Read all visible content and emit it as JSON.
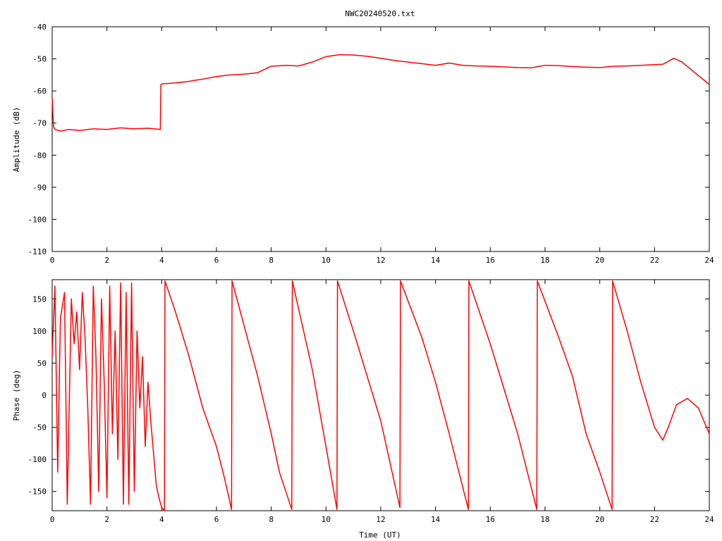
{
  "chart_data": [
    {
      "type": "line",
      "title": "NWC20240520.txt",
      "xlabel": "",
      "ylabel": "Amplitude (dB)",
      "xlim": [
        0,
        24
      ],
      "ylim": [
        -110,
        -40
      ],
      "xticks": [
        "0",
        "2",
        "4",
        "6",
        "8",
        "10",
        "12",
        "14",
        "16",
        "18",
        "20",
        "22",
        "24"
      ],
      "yticks": [
        "-40",
        "-50",
        "-60",
        "-70",
        "-80",
        "-90",
        "-100",
        "-110"
      ],
      "grid": false,
      "color": "#ff0000",
      "series": [
        {
          "x": [
            0.0,
            0.05,
            0.1,
            0.3,
            0.6,
            1.0,
            1.5,
            2.0,
            2.5,
            3.0,
            3.5,
            3.95,
            3.97,
            4.0,
            4.5,
            5.0,
            5.5,
            6.0,
            6.5,
            7.0,
            7.5,
            8.0,
            8.5,
            9.0,
            9.5,
            10.0,
            10.5,
            11.0,
            11.5,
            12.0,
            12.5,
            13.0,
            13.5,
            14.0,
            14.5,
            15.0,
            15.5,
            16.0,
            16.5,
            17.0,
            17.5,
            18.0,
            18.5,
            19.0,
            19.5,
            20.0,
            20.5,
            21.0,
            21.5,
            22.0,
            22.3,
            22.5,
            22.7,
            23.0,
            23.5,
            24.0
          ],
          "y": [
            -62,
            -71,
            -72,
            -72.5,
            -72,
            -72.3,
            -71.8,
            -72,
            -71.5,
            -71.8,
            -71.6,
            -72,
            -58,
            -57.8,
            -57.5,
            -57,
            -56.3,
            -55.5,
            -55,
            -54.8,
            -54.3,
            -52.3,
            -52,
            -52.2,
            -51,
            -49.3,
            -48.7,
            -48.8,
            -49.2,
            -49.8,
            -50.5,
            -51,
            -51.5,
            -52,
            -51.3,
            -52,
            -52.2,
            -52.3,
            -52.5,
            -52.7,
            -52.8,
            -52,
            -52.1,
            -52.4,
            -52.6,
            -52.7,
            -52.3,
            -52.2,
            -52,
            -51.8,
            -51.7,
            -50.8,
            -49.8,
            -51,
            -54.5,
            -58
          ]
        }
      ]
    },
    {
      "type": "line",
      "title": "",
      "xlabel": "Time (UT)",
      "ylabel": "Phase (deg)",
      "xlim": [
        0,
        24
      ],
      "ylim": [
        -180,
        180
      ],
      "xticks": [
        "0",
        "2",
        "4",
        "6",
        "8",
        "10",
        "12",
        "14",
        "16",
        "18",
        "20",
        "22",
        "24"
      ],
      "yticks": [
        "150",
        "100",
        "50",
        "0",
        "-50",
        "-100",
        "-150"
      ],
      "grid": false,
      "color": "#ff0000",
      "series": [
        {
          "x": [
            0.0,
            0.1,
            0.2,
            0.3,
            0.45,
            0.55,
            0.7,
            0.8,
            0.9,
            1.0,
            1.1,
            1.2,
            1.3,
            1.4,
            1.5,
            1.6,
            1.7,
            1.8,
            1.9,
            2.0,
            2.1,
            2.2,
            2.3,
            2.4,
            2.5,
            2.6,
            2.7,
            2.8,
            2.9,
            3.0,
            3.1,
            3.2,
            3.3,
            3.4,
            3.5,
            3.6,
            3.7,
            3.8,
            3.9,
            4.0,
            4.1,
            4.12,
            4.5,
            5.0,
            5.5,
            6.0,
            6.3,
            6.55,
            6.57,
            7.0,
            7.5,
            8.0,
            8.3,
            8.75,
            8.77,
            9.5,
            10.0,
            10.4,
            10.42,
            11.0,
            11.5,
            12.0,
            12.7,
            12.72,
            13.5,
            14.0,
            14.5,
            15.2,
            15.22,
            16.0,
            16.5,
            17.0,
            17.7,
            17.72,
            18.5,
            19.0,
            19.5,
            20.0,
            20.45,
            20.47,
            21.0,
            21.5,
            22.0,
            22.3,
            22.5,
            22.8,
            23.2,
            23.6,
            24.0
          ],
          "y": [
            60,
            170,
            -120,
            120,
            160,
            -170,
            150,
            80,
            130,
            40,
            160,
            90,
            -20,
            -170,
            170,
            60,
            -150,
            150,
            20,
            -160,
            170,
            -60,
            100,
            -100,
            175,
            -170,
            160,
            -170,
            175,
            -150,
            100,
            -20,
            60,
            -80,
            20,
            -40,
            -90,
            -140,
            -160,
            -175,
            -180,
            178,
            130,
            60,
            -20,
            -80,
            -130,
            -178,
            178,
            110,
            30,
            -60,
            -120,
            -178,
            178,
            40,
            -80,
            -178,
            178,
            100,
            30,
            -40,
            -175,
            178,
            90,
            20,
            -60,
            -178,
            178,
            80,
            10,
            -60,
            -178,
            178,
            90,
            30,
            -60,
            -120,
            -178,
            178,
            100,
            20,
            -50,
            -70,
            -50,
            -15,
            -5,
            -20,
            -60
          ]
        }
      ]
    }
  ]
}
